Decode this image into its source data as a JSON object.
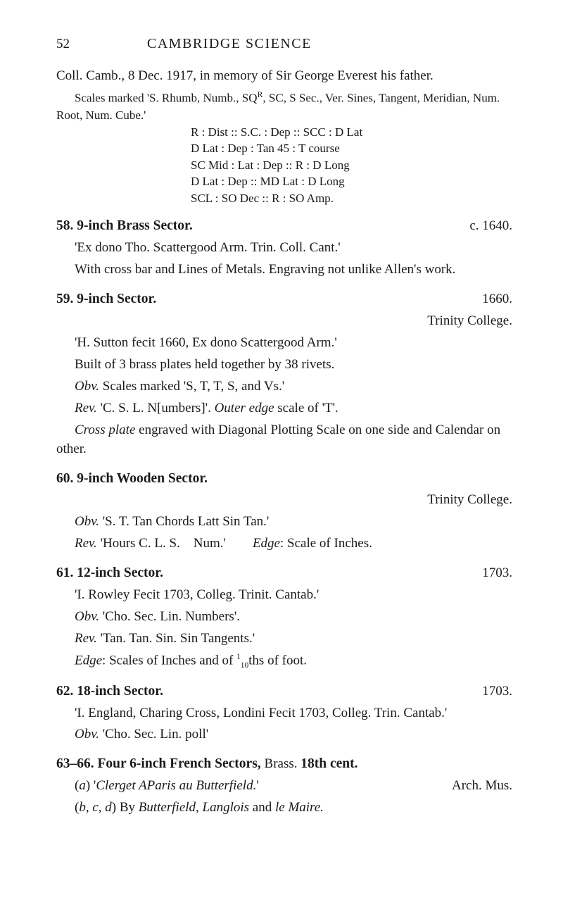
{
  "page_number": "52",
  "running_title": "CAMBRIDGE SCIENCE",
  "intro": {
    "line1": "Coll. Camb., 8 Dec. 1917, in memory of Sir George Everest his father.",
    "scales1_a": "Scales marked 'S. Rhumb, Numb., SQ",
    "scales1_r": "R",
    "scales1_b": ", SC, S Sec., Ver. Sines, Tangent, Meridian, Num. Root, Num. Cube.'",
    "c1": "R : Dist :: S.C. : Dep :: SCC : D Lat",
    "c2": "D Lat : Dep : Tan 45 : T course",
    "c3": "SC Mid : Lat : Dep :: R : D Long",
    "c4": "D Lat : Dep :: MD Lat : D Long",
    "c5": "SCL : SO Dec :: R : SO Amp."
  },
  "e58": {
    "title": "58. 9-inch Brass Sector.",
    "date": "c. 1640.",
    "p1": "'Ex dono Tho. Scattergood Arm. Trin. Coll. Cant.'",
    "p2": "With cross bar and Lines of Metals. Engraving not unlike Allen's work."
  },
  "e59": {
    "title": "59. 9-inch Sector.",
    "date": "1660.",
    "sub": "Trinity College.",
    "p1": "'H. Sutton fecit 1660, Ex dono Scattergood Arm.'",
    "p2": "Built of 3 brass plates held together by 38 rivets.",
    "p3a": "Obv.",
    "p3b": " Scales marked 'S, T, T, S, and Vs.'",
    "p4a": "Rev.",
    "p4b": " 'C. S. L. N[umbers]'. ",
    "p4c": "Outer edge",
    "p4d": " scale of 'T'.",
    "p5a": "Cross plate",
    "p5b": " engraved with Diagonal Plotting Scale on one side and Calendar on other."
  },
  "e60": {
    "title": "60. 9-inch Wooden Sector.",
    "sub": "Trinity College.",
    "p1a": "Obv.",
    "p1b": " 'S. T. Tan Chords Latt Sin Tan.'",
    "p2a": "Rev.",
    "p2b": " 'Hours C. L. S. Num.'  ",
    "p2c": "Edge",
    "p2d": ": Scale of Inches."
  },
  "e61": {
    "title": "61. 12-inch Sector.",
    "date": "1703.",
    "p1": "'I. Rowley Fecit 1703, Colleg. Trinit. Cantab.'",
    "p2a": "Obv.",
    "p2b": " 'Cho. Sec. Lin. Numbers'.",
    "p3a": "Rev.",
    "p3b": " 'Tan. Tan. Sin. Sin Tangents.'",
    "p4a": "Edge",
    "p4b": ": Scales of Inches and of ",
    "p4c": "1",
    "p4d": "10",
    "p4e": "ths of foot."
  },
  "e62": {
    "title": "62. 18-inch Sector.",
    "date": "1703.",
    "p1": "'I. England, Charing Cross, Londini Fecit 1703, Colleg. Trin. Cantab.'",
    "p2a": "Obv.",
    "p2b": " 'Cho. Sec. Lin. poll'"
  },
  "e63": {
    "title_a": "63–66. Four 6-inch French Sectors, ",
    "title_b": "Brass. ",
    "title_c": "18th cent.",
    "pa_left_a": "(",
    "pa_left_b": "a",
    "pa_left_c": ") '",
    "pa_left_d": "Clerget AParis au Butterfield.",
    "pa_left_e": "'",
    "pa_right": "Arch. Mus.",
    "pb_a": "(",
    "pb_b": "b, c, d",
    "pb_c": ") By ",
    "pb_d": "Butterfield, Langlois",
    "pb_e": " and ",
    "pb_f": "le Maire."
  }
}
